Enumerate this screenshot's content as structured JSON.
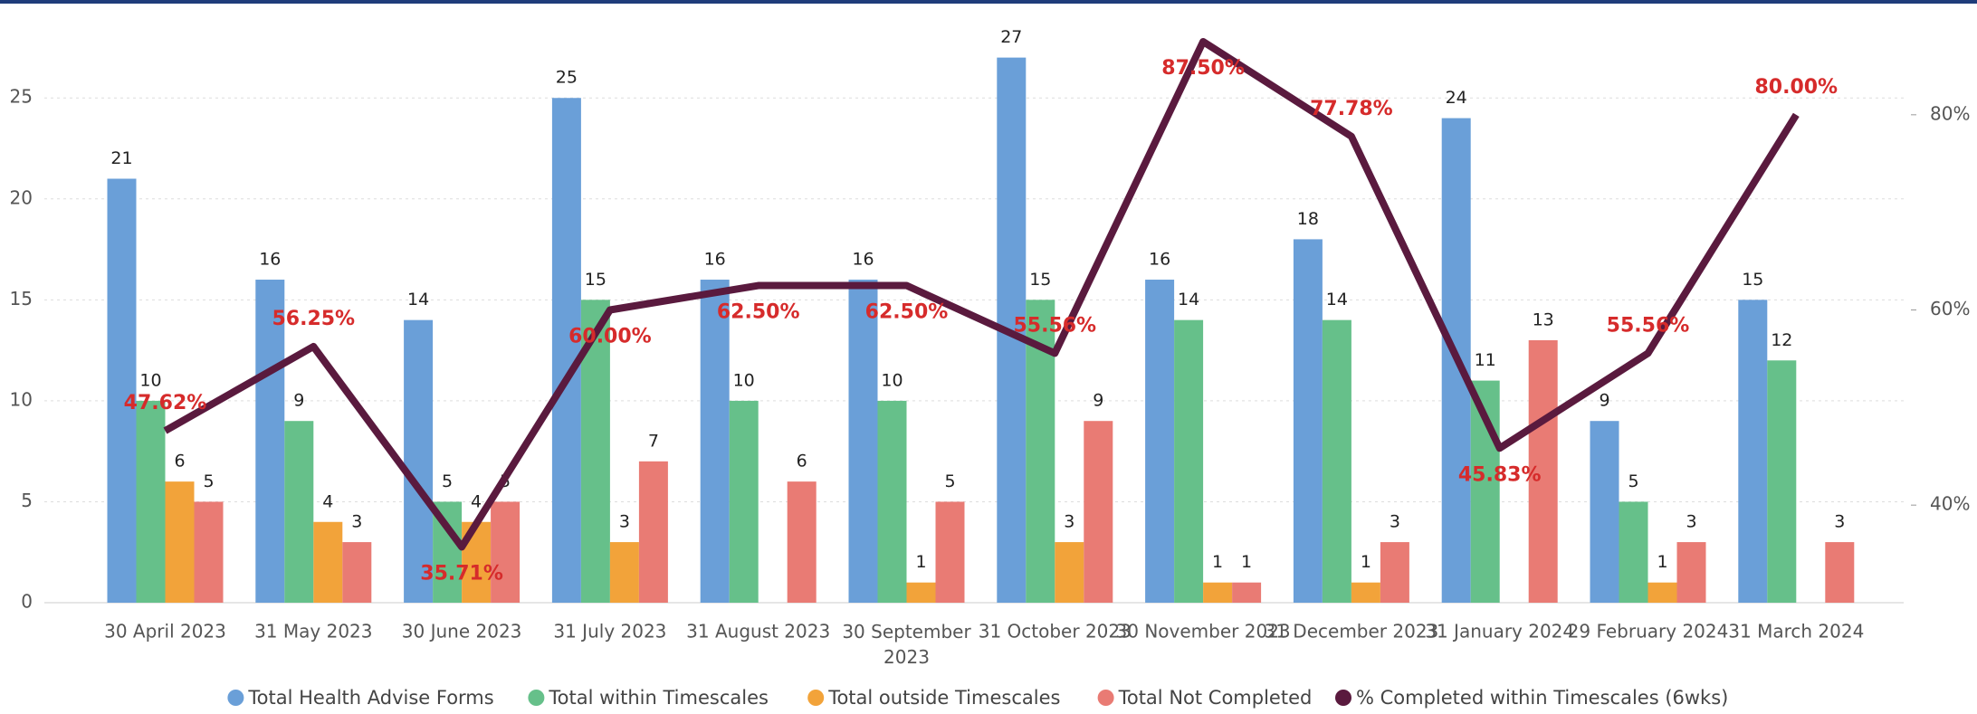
{
  "chart_data": {
    "type": "bar",
    "categories": [
      "30 April 2023",
      "31 May 2023",
      "30 June 2023",
      "31 July 2023",
      "31 August 2023",
      "30 September 2023",
      "31 October 2023",
      "30 November 2023",
      "31 December 2023",
      "31 January 2024",
      "29 February 2024",
      "31 March 2024"
    ],
    "series": [
      {
        "name": "Total Health Advise Forms",
        "color": "#6a9fd8",
        "values": [
          21,
          16,
          14,
          25,
          16,
          16,
          27,
          16,
          18,
          24,
          9,
          15
        ]
      },
      {
        "name": "Total within Timescales",
        "color": "#66c08a",
        "values": [
          10,
          9,
          5,
          15,
          10,
          10,
          15,
          14,
          14,
          11,
          5,
          12
        ]
      },
      {
        "name": "Total outside Timescales",
        "color": "#f2a33a",
        "values": [
          6,
          4,
          4,
          3,
          null,
          1,
          3,
          1,
          1,
          null,
          1,
          null
        ]
      },
      {
        "name": "Total Not Completed",
        "color": "#e97b74",
        "values": [
          5,
          3,
          5,
          7,
          6,
          5,
          9,
          1,
          3,
          13,
          3,
          3
        ]
      },
      {
        "name": "% Completed within Timescales (6wks)",
        "color": "#5a1a3e",
        "type": "line",
        "axis": "y2",
        "values": [
          47.62,
          56.25,
          35.71,
          60.0,
          62.5,
          62.5,
          55.56,
          87.5,
          77.78,
          45.83,
          55.56,
          80.0
        ],
        "value_labels": [
          "47.62%",
          "56.25%",
          "35.71%",
          "60.00%",
          "62.50%",
          "62.50%",
          "55.56%",
          "87.50%",
          "77.78%",
          "45.83%",
          "55.56%",
          "80.00%"
        ]
      }
    ],
    "ylim": [
      0,
      29
    ],
    "yticks": [
      0,
      5,
      10,
      15,
      20,
      25
    ],
    "y2lim": [
      30,
      90
    ],
    "y2ticks": [
      {
        "value": 40,
        "label": "40%"
      },
      {
        "value": 60,
        "label": "60%"
      },
      {
        "value": 80,
        "label": "80%"
      }
    ],
    "grid": true,
    "legend": "bottom"
  }
}
